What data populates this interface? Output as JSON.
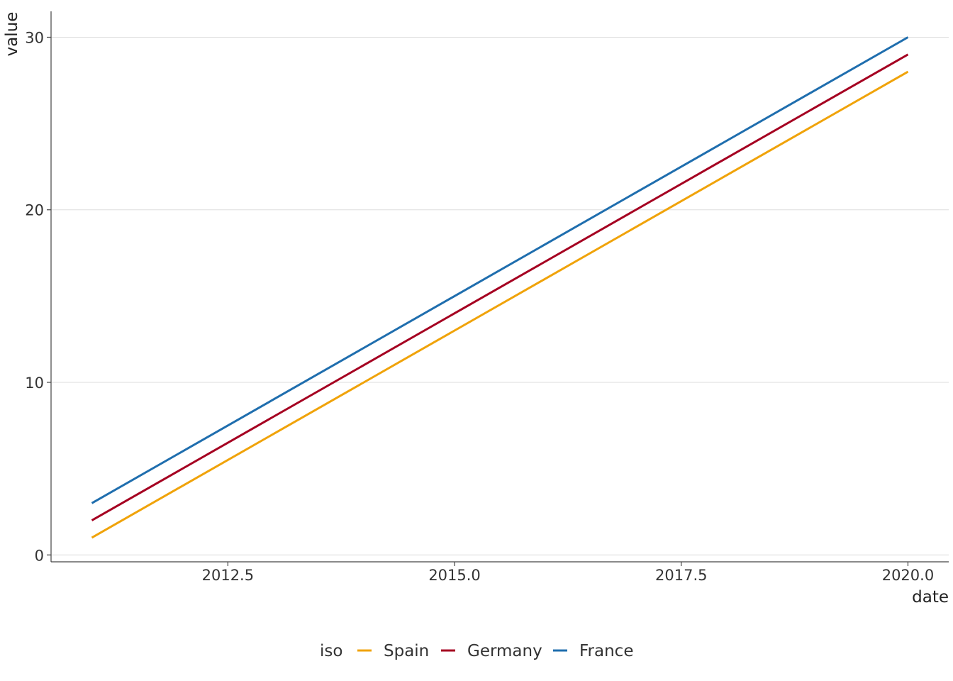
{
  "chart_data": {
    "type": "line",
    "xlabel": "date",
    "ylabel": "value",
    "xlim": [
      2010.55,
      2020.45
    ],
    "ylim": [
      -0.4,
      31.5
    ],
    "x_ticks": [
      2012.5,
      2015.0,
      2017.5,
      2020.0
    ],
    "x_tick_labels": [
      "2012.5",
      "2015.0",
      "2017.5",
      "2020.0"
    ],
    "y_ticks": [
      0,
      10,
      20,
      30
    ],
    "y_tick_labels": [
      "0",
      "10",
      "20",
      "30"
    ],
    "grid": "horizontal",
    "legend": {
      "title": "iso",
      "position": "bottom"
    },
    "series": [
      {
        "name": "Spain",
        "color": "#F0A30A",
        "x": [
          2011,
          2020
        ],
        "y": [
          1,
          28
        ]
      },
      {
        "name": "Germany",
        "color": "#A50021",
        "x": [
          2011,
          2020
        ],
        "y": [
          2,
          29
        ]
      },
      {
        "name": "France",
        "color": "#1F6EAE",
        "x": [
          2011,
          2020
        ],
        "y": [
          3,
          30
        ]
      }
    ]
  }
}
